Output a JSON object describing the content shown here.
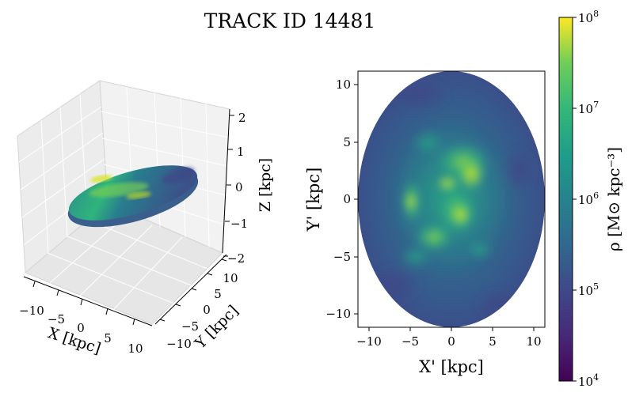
{
  "figure_title": "TRACK ID 14481",
  "chart_data": [
    {
      "type": "3d-surface",
      "panel": "left",
      "x_label": "X [kpc]",
      "y_label": "Y [kpc]",
      "z_label": "Z [kpc]",
      "x_ticks": [
        "−10",
        "−5",
        "0",
        "5",
        "10"
      ],
      "y_ticks": [
        "−10",
        "−5",
        "0",
        "5",
        "10"
      ],
      "z_ticks": [
        "−2",
        "−1",
        "0",
        "1",
        "2"
      ],
      "xlim": [
        -12,
        12
      ],
      "ylim": [
        -12,
        12
      ],
      "zlim": [
        -2,
        2
      ],
      "surface": "tilted galaxy disk colored by density"
    },
    {
      "type": "heatmap",
      "panel": "right",
      "x_label": "X' [kpc]",
      "y_label": "Y' [kpc]",
      "x_ticks": [
        "−10",
        "−5",
        "0",
        "5",
        "10"
      ],
      "y_ticks": [
        "−10",
        "−5",
        "0",
        "5",
        "10"
      ],
      "xlim": [
        -11.2,
        11.2
      ],
      "ylim": [
        -11.2,
        11.2
      ],
      "disk_radius_kpc": 11,
      "colormap": "viridis"
    }
  ],
  "colorbar": {
    "label": "ρ [M⊙ kpc⁻³]",
    "scale": "log",
    "range": [
      4,
      8
    ],
    "ticks": [
      {
        "base": "10",
        "exp": "4",
        "value": 4
      },
      {
        "base": "10",
        "exp": "5",
        "value": 5
      },
      {
        "base": "10",
        "exp": "6",
        "value": 6
      },
      {
        "base": "10",
        "exp": "7",
        "value": 7
      },
      {
        "base": "10",
        "exp": "8",
        "value": 8
      }
    ],
    "colors": [
      "#440154",
      "#3b528b",
      "#21918c",
      "#5ec962",
      "#fde725"
    ]
  }
}
